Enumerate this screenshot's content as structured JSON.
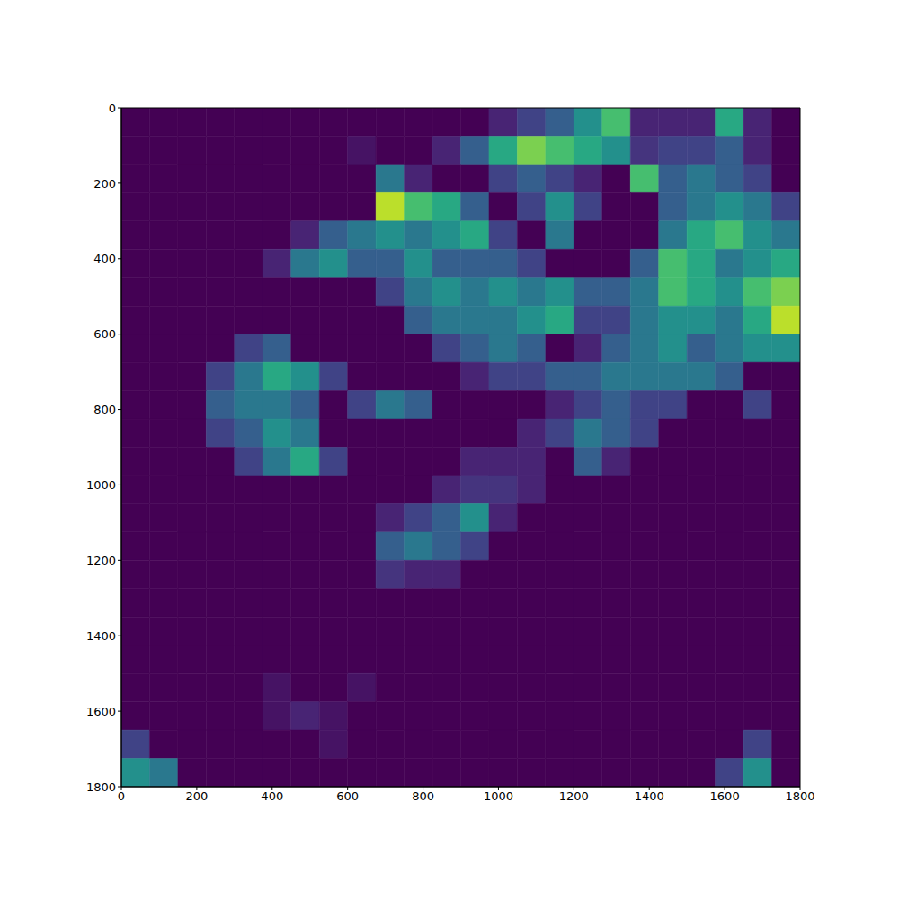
{
  "chart_data": {
    "type": "heatmap",
    "xlim": [
      0,
      1800
    ],
    "ylim": [
      0,
      1800
    ],
    "xticks": [
      0,
      200,
      400,
      600,
      800,
      1000,
      1200,
      1400,
      1600,
      1800
    ],
    "yticks": [
      0,
      200,
      400,
      600,
      800,
      1000,
      1200,
      1400,
      1600,
      1800
    ],
    "color_range": [
      0,
      1
    ],
    "cells": [
      [
        0,
        0,
        0,
        0,
        0,
        0,
        0,
        0,
        0,
        0,
        0,
        0,
        0,
        0.1,
        0.2,
        0.3,
        0.5,
        0.7,
        0.1,
        0.1,
        0.1,
        0.6,
        0.1,
        0
      ],
      [
        0,
        0,
        0,
        0,
        0,
        0,
        0,
        0,
        0.05,
        0,
        0,
        0.1,
        0.3,
        0.6,
        0.8,
        0.7,
        0.6,
        0.5,
        0.15,
        0.2,
        0.2,
        0.3,
        0.1,
        0
      ],
      [
        0,
        0,
        0,
        0,
        0,
        0,
        0,
        0,
        0,
        0.4,
        0.1,
        0,
        0,
        0.2,
        0.3,
        0.2,
        0.1,
        0,
        0.7,
        0.3,
        0.4,
        0.3,
        0.2,
        0
      ],
      [
        0,
        0,
        0,
        0,
        0,
        0,
        0,
        0,
        0,
        0.9,
        0.7,
        0.6,
        0.3,
        0,
        0.2,
        0.5,
        0.2,
        0,
        0,
        0.3,
        0.4,
        0.5,
        0.4,
        0.2
      ],
      [
        0,
        0,
        0,
        0,
        0,
        0,
        0.1,
        0.3,
        0.4,
        0.5,
        0.4,
        0.5,
        0.6,
        0.2,
        0,
        0.4,
        0,
        0,
        0,
        0.4,
        0.6,
        0.7,
        0.5,
        0.4
      ],
      [
        0,
        0,
        0,
        0,
        0,
        0.1,
        0.4,
        0.5,
        0.3,
        0.3,
        0.5,
        0.3,
        0.3,
        0.3,
        0.2,
        0,
        0,
        0,
        0.3,
        0.7,
        0.6,
        0.4,
        0.5,
        0.6
      ],
      [
        0,
        0,
        0,
        0,
        0,
        0,
        0,
        0,
        0,
        0.2,
        0.4,
        0.5,
        0.4,
        0.5,
        0.4,
        0.5,
        0.3,
        0.3,
        0.4,
        0.7,
        0.6,
        0.5,
        0.7,
        0.8
      ],
      [
        0,
        0,
        0,
        0,
        0,
        0,
        0,
        0,
        0,
        0,
        0.3,
        0.4,
        0.4,
        0.4,
        0.5,
        0.6,
        0.2,
        0.2,
        0.4,
        0.5,
        0.5,
        0.4,
        0.6,
        0.9
      ],
      [
        0,
        0,
        0,
        0,
        0.2,
        0.3,
        0,
        0,
        0,
        0,
        0,
        0.2,
        0.3,
        0.4,
        0.3,
        0,
        0.1,
        0.3,
        0.4,
        0.5,
        0.3,
        0.4,
        0.5,
        0.5
      ],
      [
        0,
        0,
        0,
        0.2,
        0.4,
        0.6,
        0.5,
        0.2,
        0,
        0,
        0,
        0,
        0.1,
        0.2,
        0.2,
        0.3,
        0.3,
        0.4,
        0.4,
        0.4,
        0.4,
        0.3,
        0,
        0
      ],
      [
        0,
        0,
        0,
        0.3,
        0.4,
        0.4,
        0.3,
        0,
        0.2,
        0.4,
        0.3,
        0,
        0,
        0,
        0,
        0.1,
        0.2,
        0.3,
        0.2,
        0.2,
        0,
        0,
        0.2,
        0
      ],
      [
        0,
        0,
        0,
        0.2,
        0.3,
        0.5,
        0.4,
        0,
        0,
        0,
        0,
        0,
        0,
        0,
        0.1,
        0.2,
        0.4,
        0.3,
        0.2,
        0,
        0,
        0,
        0,
        0
      ],
      [
        0,
        0,
        0,
        0,
        0.2,
        0.4,
        0.6,
        0.2,
        0,
        0,
        0,
        0,
        0.1,
        0.1,
        0.1,
        0,
        0.3,
        0.1,
        0,
        0,
        0,
        0,
        0,
        0
      ],
      [
        0,
        0,
        0,
        0,
        0,
        0,
        0,
        0,
        0,
        0,
        0,
        0.1,
        0.15,
        0.15,
        0.1,
        0,
        0,
        0,
        0,
        0,
        0,
        0,
        0,
        0
      ],
      [
        0,
        0,
        0,
        0,
        0,
        0,
        0,
        0,
        0,
        0.1,
        0.2,
        0.3,
        0.5,
        0.1,
        0,
        0,
        0,
        0,
        0,
        0,
        0,
        0,
        0,
        0
      ],
      [
        0,
        0,
        0,
        0,
        0,
        0,
        0,
        0,
        0,
        0.3,
        0.4,
        0.3,
        0.2,
        0,
        0,
        0,
        0,
        0,
        0,
        0,
        0,
        0,
        0,
        0
      ],
      [
        0,
        0,
        0,
        0,
        0,
        0,
        0,
        0,
        0,
        0.15,
        0.1,
        0.1,
        0,
        0,
        0,
        0,
        0,
        0,
        0,
        0,
        0,
        0,
        0,
        0
      ],
      [
        0,
        0,
        0,
        0,
        0,
        0,
        0,
        0,
        0,
        0,
        0,
        0,
        0,
        0,
        0,
        0,
        0,
        0,
        0,
        0,
        0,
        0,
        0,
        0
      ],
      [
        0,
        0,
        0,
        0,
        0,
        0,
        0,
        0,
        0,
        0,
        0,
        0,
        0,
        0,
        0,
        0,
        0,
        0,
        0,
        0,
        0,
        0,
        0,
        0
      ],
      [
        0,
        0,
        0,
        0,
        0,
        0,
        0,
        0,
        0,
        0,
        0,
        0,
        0,
        0,
        0,
        0,
        0,
        0,
        0,
        0,
        0,
        0,
        0,
        0
      ],
      [
        0,
        0,
        0,
        0,
        0,
        0.05,
        0,
        0,
        0.05,
        0,
        0,
        0,
        0,
        0,
        0,
        0,
        0,
        0,
        0,
        0,
        0,
        0,
        0,
        0
      ],
      [
        0,
        0,
        0,
        0,
        0,
        0.05,
        0.1,
        0.05,
        0,
        0,
        0,
        0,
        0,
        0,
        0,
        0,
        0,
        0,
        0,
        0,
        0,
        0,
        0,
        0
      ],
      [
        0.2,
        0,
        0,
        0,
        0,
        0,
        0,
        0.05,
        0,
        0,
        0,
        0,
        0,
        0,
        0,
        0,
        0,
        0,
        0,
        0,
        0,
        0,
        0.2,
        0
      ],
      [
        0.5,
        0.4,
        0,
        0,
        0,
        0,
        0,
        0,
        0,
        0,
        0,
        0,
        0,
        0,
        0,
        0,
        0,
        0,
        0,
        0,
        0,
        0.2,
        0.5,
        0
      ]
    ]
  }
}
